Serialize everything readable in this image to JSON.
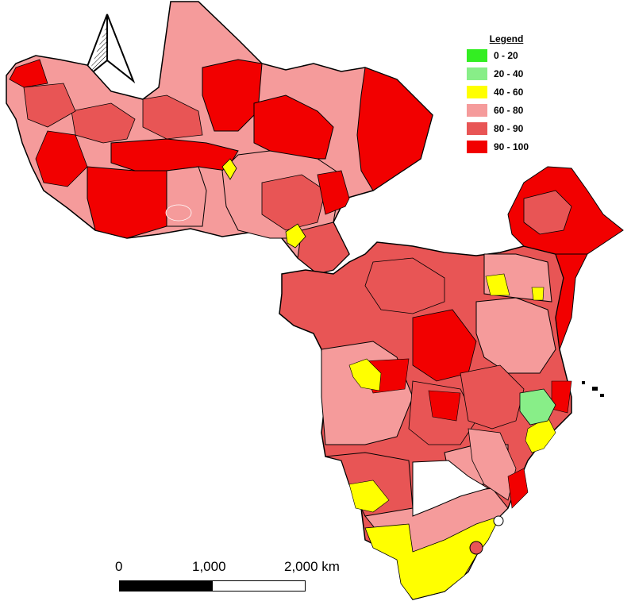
{
  "legend": {
    "title": "Legend",
    "classes": [
      {
        "label": "0 - 20",
        "color": "#33ee22"
      },
      {
        "label": "20 - 40",
        "color": "#88ee88"
      },
      {
        "label": "40 - 60",
        "color": "#ffff00"
      },
      {
        "label": "60 - 80",
        "color": "#f59b9b"
      },
      {
        "label": "80 - 90",
        "color": "#e85555"
      },
      {
        "label": "90 - 100",
        "color": "#f20000"
      }
    ]
  },
  "scale_bar": {
    "ticks": [
      "0",
      "1,000",
      "2,000 km"
    ]
  },
  "north_arrow": {
    "icon": "north-arrow-icon"
  }
}
